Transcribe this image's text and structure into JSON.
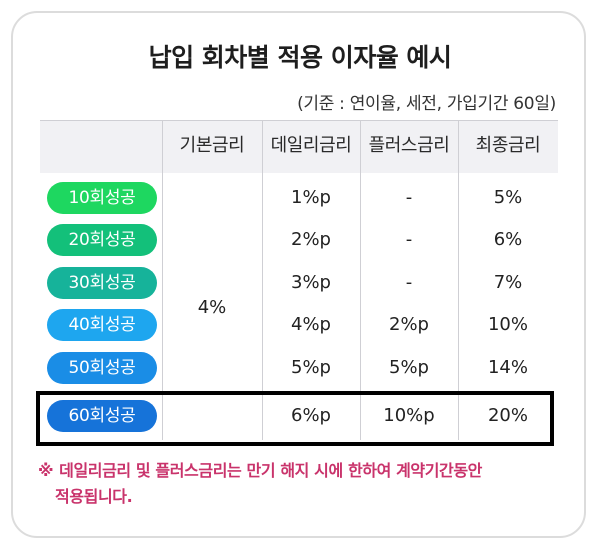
{
  "title": "납입 회차별 적용 이자율 예시",
  "basis": "(기준 : 연이율, 세전, 가입기간 60일)",
  "columns": [
    "기본금리",
    "데일리금리",
    "플러스금리",
    "최종금리"
  ],
  "base_rate": "4%",
  "rows": [
    {
      "label": "10회성공",
      "color": "#1ed760",
      "daily": "1%p",
      "plus": "-",
      "final": "5%"
    },
    {
      "label": "20회성공",
      "color": "#13c07a",
      "daily": "2%p",
      "plus": "-",
      "final": "6%"
    },
    {
      "label": "30회성공",
      "color": "#16b39a",
      "daily": "3%p",
      "plus": "-",
      "final": "7%"
    },
    {
      "label": "40회성공",
      "color": "#1ea6ef",
      "daily": "4%p",
      "plus": "2%p",
      "final": "10%"
    },
    {
      "label": "50회성공",
      "color": "#1a8de6",
      "daily": "5%p",
      "plus": "5%p",
      "final": "14%"
    },
    {
      "label": "60회성공",
      "color": "#1673d9",
      "daily": "6%p",
      "plus": "10%p",
      "final": "20%"
    }
  ],
  "note": {
    "mark": "※",
    "line1": "데일리금리 및 플러스금리는 만기 해지 시에 한하여 계약기간동안",
    "line2": "적용됩니다."
  },
  "colors": {
    "note": "#c9336b",
    "highlight_border": "#000000"
  }
}
